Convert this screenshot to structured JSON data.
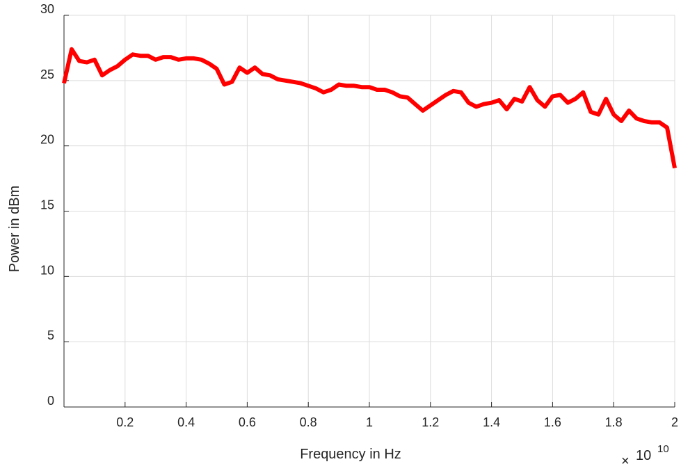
{
  "chart_data": {
    "type": "line",
    "title": "",
    "xlabel": "Frequency in Hz",
    "ylabel": "Power in dBm",
    "x_exponent_label": "10",
    "x_multiplier_symbol": "×",
    "xlim": [
      0,
      2
    ],
    "ylim": [
      0,
      30
    ],
    "xticks": [
      0.2,
      0.4,
      0.6,
      0.8,
      1,
      1.2,
      1.4,
      1.6,
      1.8,
      2
    ],
    "xtick_labels": [
      "0.2",
      "0.4",
      "0.6",
      "0.8",
      "1",
      "1.2",
      "1.4",
      "1.6",
      "1.8",
      "2"
    ],
    "yticks": [
      0,
      5,
      10,
      15,
      20,
      25,
      30
    ],
    "ytick_labels": [
      "0",
      "5",
      "10",
      "15",
      "20",
      "25",
      "30"
    ],
    "grid": true,
    "series": [
      {
        "color": "#ff0000",
        "x": [
          0.0,
          0.025,
          0.05,
          0.075,
          0.1,
          0.125,
          0.15,
          0.175,
          0.2,
          0.225,
          0.25,
          0.275,
          0.3,
          0.325,
          0.35,
          0.375,
          0.4,
          0.425,
          0.45,
          0.475,
          0.5,
          0.525,
          0.55,
          0.575,
          0.6,
          0.625,
          0.65,
          0.675,
          0.7,
          0.725,
          0.75,
          0.775,
          0.8,
          0.825,
          0.85,
          0.875,
          0.9,
          0.925,
          0.95,
          0.975,
          1.0,
          1.025,
          1.05,
          1.075,
          1.1,
          1.125,
          1.15,
          1.175,
          1.2,
          1.225,
          1.25,
          1.275,
          1.3,
          1.325,
          1.35,
          1.375,
          1.4,
          1.425,
          1.45,
          1.475,
          1.5,
          1.525,
          1.55,
          1.575,
          1.6,
          1.625,
          1.65,
          1.675,
          1.7,
          1.725,
          1.75,
          1.775,
          1.8,
          1.825,
          1.85,
          1.875,
          1.9,
          1.925,
          1.95,
          1.975,
          2.0
        ],
        "values": [
          24.8,
          27.4,
          26.5,
          26.4,
          26.6,
          25.4,
          25.8,
          26.1,
          26.6,
          27.0,
          26.9,
          26.9,
          26.6,
          26.8,
          26.8,
          26.6,
          26.7,
          26.7,
          26.6,
          26.3,
          25.9,
          24.7,
          24.9,
          26.0,
          25.6,
          26.0,
          25.5,
          25.4,
          25.1,
          25.0,
          24.9,
          24.8,
          24.6,
          24.4,
          24.1,
          24.3,
          24.7,
          24.6,
          24.6,
          24.5,
          24.5,
          24.3,
          24.3,
          24.1,
          23.8,
          23.7,
          23.2,
          22.7,
          23.1,
          23.5,
          23.9,
          24.2,
          24.1,
          23.3,
          23.0,
          23.2,
          23.3,
          23.5,
          22.8,
          23.6,
          23.4,
          24.5,
          23.5,
          23.0,
          23.8,
          23.9,
          23.3,
          23.6,
          24.1,
          22.6,
          22.4,
          23.6,
          22.4,
          21.9,
          22.7,
          22.1,
          21.9,
          21.8,
          21.8,
          21.4,
          18.3
        ]
      }
    ]
  }
}
